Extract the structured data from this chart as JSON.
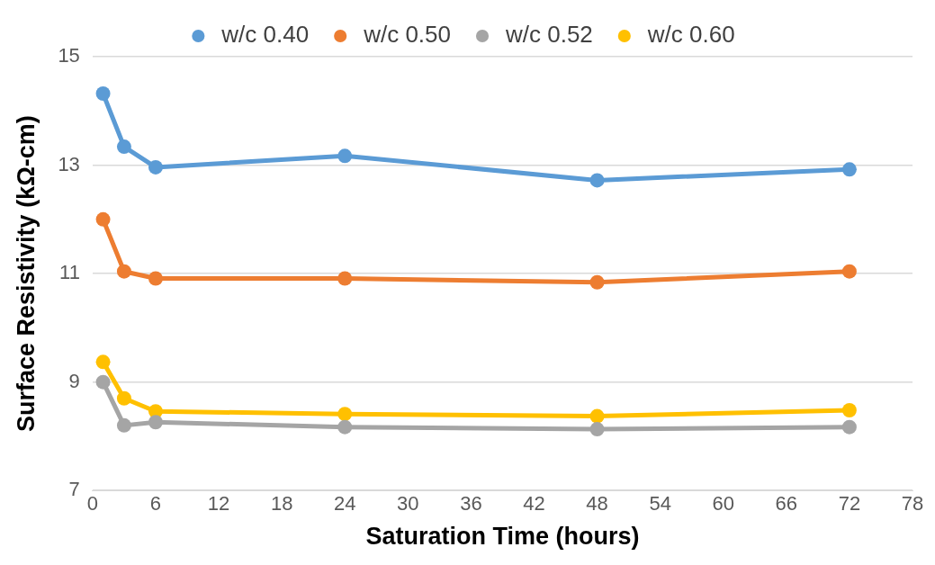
{
  "chart_data": {
    "type": "line",
    "xlabel": "Saturation Time (hours)",
    "ylabel": "Surface Resistivity (kΩ-cm)",
    "x": [
      1,
      3,
      6,
      24,
      48,
      72
    ],
    "series": [
      {
        "name": "w/c 0.40",
        "color": "#5b9bd5",
        "values": [
          14.32,
          13.34,
          12.96,
          13.17,
          12.72,
          12.92
        ]
      },
      {
        "name": "w/c 0.50",
        "color": "#ed7d31",
        "values": [
          12.0,
          11.04,
          10.91,
          10.91,
          10.84,
          11.04
        ]
      },
      {
        "name": "w/c 0.52",
        "color": "#a5a5a5",
        "values": [
          9.0,
          8.2,
          8.26,
          8.17,
          8.13,
          8.17
        ]
      },
      {
        "name": "w/c 0.60",
        "color": "#ffc000",
        "values": [
          9.37,
          8.7,
          8.46,
          8.41,
          8.37,
          8.48
        ]
      }
    ],
    "xlim": [
      0,
      78
    ],
    "xticks": [
      0,
      6,
      12,
      18,
      24,
      30,
      36,
      42,
      48,
      54,
      60,
      66,
      72,
      78
    ],
    "ylim": [
      7,
      15
    ],
    "yticks": [
      7,
      9,
      11,
      13,
      15
    ],
    "grid": "y",
    "legend": "top",
    "marker": "circle",
    "line_style": "solid"
  }
}
